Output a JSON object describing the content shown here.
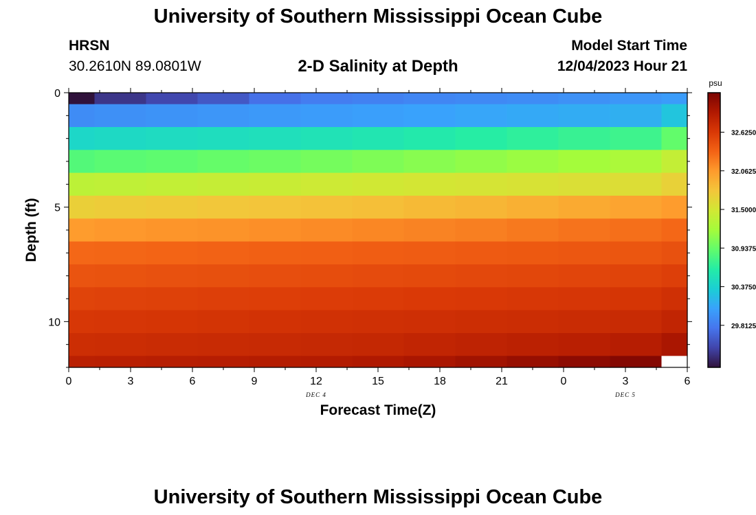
{
  "header": {
    "title": "University of Southern Mississippi Ocean Cube",
    "station": "HRSN",
    "coords": "30.2610N  89.0801W",
    "subtitle": "2-D Salinity at Depth",
    "model_start_label": "Model Start Time",
    "model_start_value": "12/04/2023 Hour 21"
  },
  "footer": {
    "title": "University of Southern Mississippi Ocean Cube"
  },
  "chart_data": {
    "type": "heatmap",
    "title": "2-D Salinity at Depth",
    "xlabel": "Forecast Time(Z)",
    "ylabel": "Depth (ft)",
    "x_ticks": [
      "0",
      "3",
      "6",
      "9",
      "12",
      "15",
      "18",
      "21",
      "0",
      "3",
      "6"
    ],
    "x_date_labels": [
      {
        "label": "DEC 4",
        "hour": 12
      },
      {
        "label": "DEC 5",
        "hour": 27
      }
    ],
    "xlim": [
      0,
      30
    ],
    "y_ticks": [
      0,
      5,
      10
    ],
    "ylim": [
      0,
      12
    ],
    "colorbar": {
      "unit": "psu",
      "ticks": [
        "32.6250",
        "32.0625",
        "31.5000",
        "30.9375",
        "30.3750",
        "29.8125"
      ],
      "range": [
        29.2,
        33.2
      ],
      "colors": [
        "#30123b",
        "#4145ab",
        "#4675ed",
        "#39a2fc",
        "#1bcfd4",
        "#24eca6",
        "#61fc6c",
        "#a4fc3b",
        "#d1e834",
        "#f3c63a",
        "#fe9b2d",
        "#f36315",
        "#d93806",
        "#b11901",
        "#7a0402"
      ]
    },
    "time_columns_hours": [
      0,
      2.5,
      5,
      7.5,
      10,
      12.5,
      15,
      17.5,
      20,
      22.5,
      25,
      27.5,
      30
    ],
    "depth_rows_ft": [
      0,
      0.5,
      1.5,
      2.5,
      3.5,
      4.5,
      5.5,
      6.5,
      7.5,
      8.5,
      9.5,
      10.5,
      11.5,
      12
    ],
    "values": [
      [
        29.2,
        29.4,
        29.5,
        29.6,
        29.75,
        29.82,
        29.85,
        29.88,
        29.9,
        29.92,
        29.95,
        29.98,
        30.02
      ],
      [
        29.92,
        29.94,
        29.96,
        29.98,
        30.0,
        30.02,
        30.04,
        30.06,
        30.08,
        30.1,
        30.12,
        30.14,
        30.28
      ],
      [
        30.42,
        30.44,
        30.46,
        30.48,
        30.5,
        30.53,
        30.56,
        30.6,
        30.64,
        30.68,
        30.72,
        30.75,
        30.92
      ],
      [
        30.85,
        30.88,
        30.9,
        30.93,
        30.96,
        31.0,
        31.04,
        31.08,
        31.12,
        31.16,
        31.2,
        31.25,
        31.4
      ],
      [
        31.35,
        31.37,
        31.39,
        31.41,
        31.43,
        31.46,
        31.48,
        31.5,
        31.52,
        31.54,
        31.56,
        31.58,
        31.68
      ],
      [
        31.7,
        31.72,
        31.74,
        31.76,
        31.78,
        31.8,
        31.82,
        31.85,
        31.88,
        31.92,
        31.96,
        32.0,
        32.05
      ],
      [
        32.05,
        32.07,
        32.09,
        32.1,
        32.12,
        32.14,
        32.16,
        32.18,
        32.2,
        32.23,
        32.26,
        32.28,
        32.32
      ],
      [
        32.32,
        32.33,
        32.34,
        32.35,
        32.36,
        32.37,
        32.38,
        32.39,
        32.4,
        32.41,
        32.42,
        32.43,
        32.46
      ],
      [
        32.44,
        32.45,
        32.46,
        32.47,
        32.48,
        32.49,
        32.5,
        32.51,
        32.52,
        32.53,
        32.54,
        32.55,
        32.58
      ],
      [
        32.55,
        32.56,
        32.57,
        32.58,
        32.59,
        32.6,
        32.61,
        32.62,
        32.63,
        32.64,
        32.65,
        32.66,
        32.7
      ],
      [
        32.64,
        32.65,
        32.66,
        32.67,
        32.68,
        32.69,
        32.7,
        32.71,
        32.72,
        32.73,
        32.74,
        32.75,
        32.8
      ],
      [
        32.72,
        32.73,
        32.74,
        32.75,
        32.76,
        32.77,
        32.78,
        32.8,
        32.82,
        32.84,
        32.86,
        32.88,
        32.95
      ],
      [
        32.85,
        32.86,
        32.87,
        32.88,
        32.89,
        32.9,
        32.92,
        32.95,
        33.0,
        33.05,
        33.1,
        33.15,
        null
      ]
    ]
  }
}
